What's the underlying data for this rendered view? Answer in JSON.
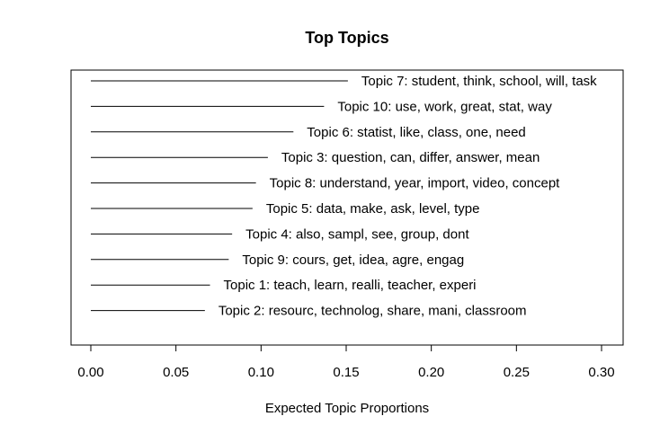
{
  "chart_data": {
    "type": "bar",
    "title": "Top Topics",
    "xlabel": "Expected Topic Proportions",
    "ylabel": "",
    "xlim": [
      0.0,
      0.3
    ],
    "x_ticks": [
      "0.00",
      "0.05",
      "0.10",
      "0.15",
      "0.20",
      "0.25",
      "0.30"
    ],
    "grid": false,
    "bars": [
      {
        "label": "Topic 7: student, think, school, will, task",
        "value": 0.151
      },
      {
        "label": "Topic 10: use, work, great, stat, way",
        "value": 0.137
      },
      {
        "label": "Topic 6: statist, like, class, one, need",
        "value": 0.119
      },
      {
        "label": "Topic 3: question, can, differ, answer, mean",
        "value": 0.104
      },
      {
        "label": "Topic 8: understand, year, import, video, concept",
        "value": 0.097
      },
      {
        "label": "Topic 5: data, make, ask, level, type",
        "value": 0.095
      },
      {
        "label": "Topic 4: also, sampl, see, group, dont",
        "value": 0.083
      },
      {
        "label": "Topic 9: cours, get, idea, agre, engag",
        "value": 0.081
      },
      {
        "label": "Topic 1: teach, learn, realli, teacher, experi",
        "value": 0.07
      },
      {
        "label": "Topic 2: resourc, technolog, share, mani, classroom",
        "value": 0.067
      }
    ]
  }
}
